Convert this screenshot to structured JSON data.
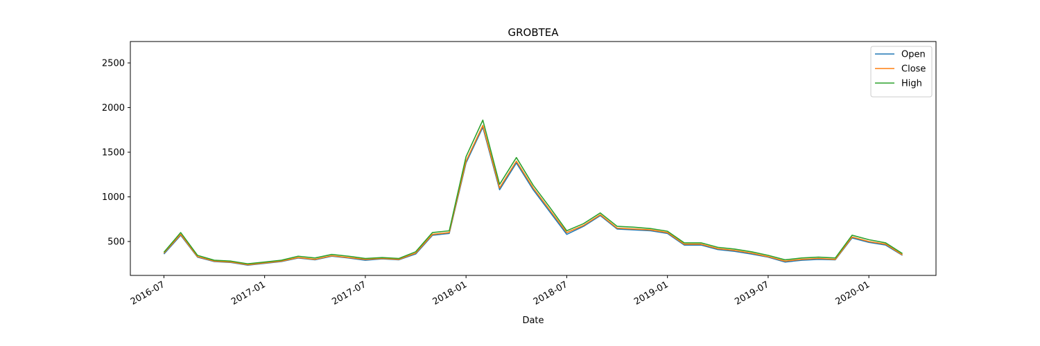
{
  "chart_data": {
    "type": "line",
    "title": "GROBTEA",
    "xlabel": "Date",
    "x": [
      "2016-07",
      "2016-08",
      "2016-09",
      "2016-10",
      "2016-11",
      "2016-12",
      "2017-01",
      "2017-02",
      "2017-03",
      "2017-04",
      "2017-05",
      "2017-06",
      "2017-07",
      "2017-08",
      "2017-09",
      "2017-10",
      "2017-11",
      "2017-12",
      "2018-01",
      "2018-02",
      "2018-03",
      "2018-04",
      "2018-05",
      "2018-06",
      "2018-07",
      "2018-08",
      "2018-09",
      "2018-10",
      "2018-11",
      "2018-12",
      "2019-01",
      "2019-02",
      "2019-03",
      "2019-04",
      "2019-05",
      "2019-06",
      "2019-07",
      "2019-08",
      "2019-09",
      "2019-10",
      "2019-11",
      "2019-12",
      "2020-01",
      "2020-02",
      "2020-03"
    ],
    "series": [
      {
        "name": "Open",
        "color": "#1f77b4",
        "values": [
          360,
          570,
          325,
          275,
          265,
          235,
          255,
          275,
          315,
          295,
          335,
          315,
          290,
          305,
          295,
          360,
          570,
          590,
          1380,
          1780,
          1080,
          1380,
          1080,
          830,
          580,
          670,
          790,
          640,
          630,
          620,
          590,
          460,
          460,
          410,
          390,
          360,
          325,
          270,
          290,
          300,
          295,
          540,
          490,
          460,
          345
        ]
      },
      {
        "name": "Close",
        "color": "#ff7f0e",
        "values": [
          370,
          580,
          330,
          280,
          270,
          240,
          260,
          280,
          320,
          300,
          340,
          320,
          300,
          310,
          300,
          370,
          580,
          600,
          1400,
          1800,
          1100,
          1400,
          1100,
          850,
          600,
          680,
          800,
          650,
          640,
          630,
          600,
          470,
          470,
          420,
          400,
          370,
          330,
          280,
          300,
          310,
          300,
          550,
          500,
          470,
          350
        ]
      },
      {
        "name": "High",
        "color": "#2ca02c",
        "values": [
          380,
          600,
          345,
          290,
          280,
          250,
          270,
          290,
          335,
          315,
          355,
          335,
          310,
          320,
          310,
          385,
          600,
          620,
          1450,
          1860,
          1140,
          1440,
          1130,
          880,
          620,
          700,
          820,
          670,
          660,
          645,
          615,
          485,
          485,
          435,
          415,
          385,
          345,
          295,
          315,
          325,
          315,
          570,
          520,
          485,
          365
        ]
      }
    ],
    "xlim": [
      "2016-05",
      "2020-05"
    ],
    "xticks": [
      "2016-07",
      "2017-01",
      "2017-07",
      "2018-01",
      "2018-07",
      "2019-01",
      "2019-07",
      "2020-01"
    ],
    "ylim": [
      120,
      2740
    ],
    "yticks": [
      500,
      1000,
      1500,
      2000,
      2500
    ],
    "grid": false,
    "legend": "upper right"
  }
}
